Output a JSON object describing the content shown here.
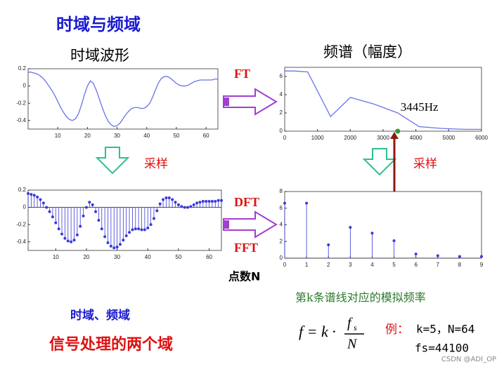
{
  "slide": {
    "title": "时域与频域",
    "time_caption": "时域波形",
    "freq_caption": "频谱（幅度）",
    "ft": "FT",
    "sampling_left": "采样",
    "sampling_right": "采样",
    "dft": "DFT",
    "fft": "FFT",
    "points": "点数N",
    "kth_line": "第k条谱线对应的模拟频率",
    "domains": "时域、频域",
    "two_domains": "信号处理的两个域",
    "formula": {
      "lhs": "f = k ·",
      "num": "f",
      "sub": "s",
      "den": "N"
    },
    "example_label": "例：",
    "example_kn": "k=5，N=64",
    "example_fs": "fs=44100",
    "watermark": "CSDN @ADI_OP"
  },
  "chart_data": [
    {
      "type": "line",
      "color": "#6b72e8",
      "xlim": [
        0,
        64
      ],
      "ylim": [
        -0.5,
        0.2
      ],
      "xticks": [
        10,
        20,
        30,
        40,
        50,
        60
      ],
      "yticks": [
        0.2,
        0,
        -0.2,
        -0.4
      ],
      "x": [
        0,
        1,
        2,
        3,
        4,
        5,
        6,
        7,
        8,
        9,
        10,
        11,
        12,
        13,
        14,
        15,
        16,
        17,
        18,
        19,
        20,
        21,
        22,
        23,
        24,
        25,
        26,
        27,
        28,
        29,
        30,
        31,
        32,
        33,
        34,
        35,
        36,
        37,
        38,
        39,
        40,
        41,
        42,
        43,
        44,
        45,
        46,
        47,
        48,
        49,
        50,
        51,
        52,
        53,
        54,
        55,
        56,
        57,
        58,
        59,
        60,
        61,
        62,
        63,
        64
      ],
      "values": [
        0.16,
        0.16,
        0.15,
        0.14,
        0.12,
        0.09,
        0.05,
        0.0,
        -0.05,
        -0.11,
        -0.18,
        -0.25,
        -0.31,
        -0.36,
        -0.39,
        -0.4,
        -0.38,
        -0.32,
        -0.22,
        -0.1,
        0.0,
        0.06,
        0.03,
        -0.05,
        -0.15,
        -0.25,
        -0.34,
        -0.41,
        -0.45,
        -0.47,
        -0.46,
        -0.43,
        -0.38,
        -0.33,
        -0.29,
        -0.26,
        -0.25,
        -0.25,
        -0.26,
        -0.26,
        -0.24,
        -0.2,
        -0.13,
        -0.04,
        0.04,
        0.09,
        0.11,
        0.11,
        0.09,
        0.06,
        0.03,
        0.01,
        0.0,
        0.0,
        0.01,
        0.03,
        0.05,
        0.06,
        0.07,
        0.07,
        0.07,
        0.07,
        0.07,
        0.08,
        0.08
      ]
    },
    {
      "type": "stem",
      "color": "#3a3ad8",
      "xlim": [
        1,
        64
      ],
      "ylim": [
        -0.5,
        0.2
      ],
      "xticks": [
        10,
        20,
        30,
        40,
        50,
        60
      ],
      "yticks": [
        0.2,
        0,
        -0.2,
        -0.4
      ],
      "x": [
        1,
        2,
        3,
        4,
        5,
        6,
        7,
        8,
        9,
        10,
        11,
        12,
        13,
        14,
        15,
        16,
        17,
        18,
        19,
        20,
        21,
        22,
        23,
        24,
        25,
        26,
        27,
        28,
        29,
        30,
        31,
        32,
        33,
        34,
        35,
        36,
        37,
        38,
        39,
        40,
        41,
        42,
        43,
        44,
        45,
        46,
        47,
        48,
        49,
        50,
        51,
        52,
        53,
        54,
        55,
        56,
        57,
        58,
        59,
        60,
        61,
        62,
        63,
        64
      ],
      "values": [
        0.16,
        0.15,
        0.14,
        0.12,
        0.09,
        0.05,
        0.0,
        -0.05,
        -0.11,
        -0.18,
        -0.25,
        -0.31,
        -0.36,
        -0.39,
        -0.4,
        -0.38,
        -0.32,
        -0.22,
        -0.1,
        0.0,
        0.06,
        0.03,
        -0.05,
        -0.15,
        -0.25,
        -0.34,
        -0.41,
        -0.45,
        -0.47,
        -0.46,
        -0.43,
        -0.38,
        -0.33,
        -0.29,
        -0.26,
        -0.25,
        -0.25,
        -0.26,
        -0.26,
        -0.24,
        -0.2,
        -0.13,
        -0.04,
        0.04,
        0.09,
        0.11,
        0.11,
        0.09,
        0.06,
        0.03,
        0.01,
        0.0,
        0.0,
        0.01,
        0.03,
        0.05,
        0.06,
        0.07,
        0.07,
        0.07,
        0.07,
        0.07,
        0.08,
        0.08
      ]
    },
    {
      "type": "line",
      "color": "#6b72e8",
      "xlim": [
        0,
        6000
      ],
      "ylim": [
        0,
        7
      ],
      "xticks": [
        0,
        1000,
        2000,
        3000,
        4000,
        5000,
        6000
      ],
      "yticks": [
        0,
        2,
        4,
        6
      ],
      "x": [
        0,
        300,
        700,
        1400,
        2000,
        2700,
        3445,
        4100,
        4800,
        5500,
        6000
      ],
      "values": [
        6.6,
        6.6,
        6.5,
        1.6,
        3.7,
        3.0,
        2.0,
        0.5,
        0.3,
        0.2,
        0.2
      ],
      "annotation": "3445Hz",
      "marker": {
        "x": 3445,
        "y": 0,
        "color": "#2e9e2e"
      }
    },
    {
      "type": "stem",
      "color": "#3a3ad8",
      "xlim": [
        0,
        9
      ],
      "ylim": [
        0,
        8
      ],
      "xticks": [
        0,
        1,
        2,
        3,
        4,
        5,
        6,
        7,
        8,
        9
      ],
      "yticks": [
        0,
        2,
        4,
        6,
        8
      ],
      "x": [
        0,
        1,
        2,
        3,
        4,
        5,
        6,
        7,
        8,
        9
      ],
      "values": [
        6.6,
        6.6,
        1.6,
        3.7,
        3.0,
        2.1,
        0.5,
        0.3,
        0.2,
        0.2
      ]
    }
  ]
}
